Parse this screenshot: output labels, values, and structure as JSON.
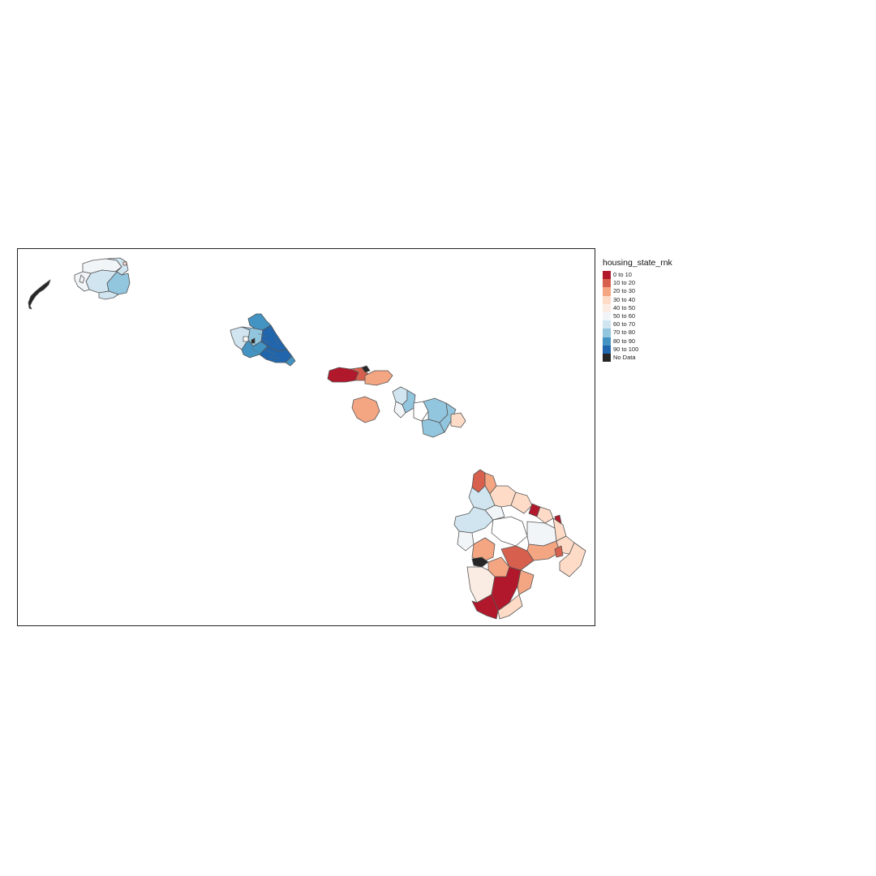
{
  "legend": {
    "title": "housing_state_rnk",
    "items": [
      {
        "label": "0 to 10",
        "color": "#b2182b"
      },
      {
        "label": "10 to 20",
        "color": "#d6604d"
      },
      {
        "label": "20 to 30",
        "color": "#f4a582"
      },
      {
        "label": "30 to 40",
        "color": "#fddbc7"
      },
      {
        "label": "40 to 50",
        "color": "#fbece3"
      },
      {
        "label": "50 to 60",
        "color": "#f2f5f8"
      },
      {
        "label": "60 to 70",
        "color": "#d1e5f0"
      },
      {
        "label": "70 to 80",
        "color": "#92c5de"
      },
      {
        "label": "80 to 90",
        "color": "#4393c3"
      },
      {
        "label": "90 to 100",
        "color": "#2166ac"
      },
      {
        "label": "No Data",
        "color": "#262626"
      }
    ]
  },
  "regions": [
    {
      "name": "niihau",
      "class": "No Data"
    },
    {
      "name": "kauai",
      "class": "50 to 80"
    },
    {
      "name": "oahu",
      "class": "70 to 100"
    },
    {
      "name": "molokai",
      "class": "0 to 30"
    },
    {
      "name": "lanai",
      "class": "20 to 30"
    },
    {
      "name": "maui",
      "class": "50 to 80"
    },
    {
      "name": "hawaii",
      "class": "0 to 70"
    }
  ]
}
